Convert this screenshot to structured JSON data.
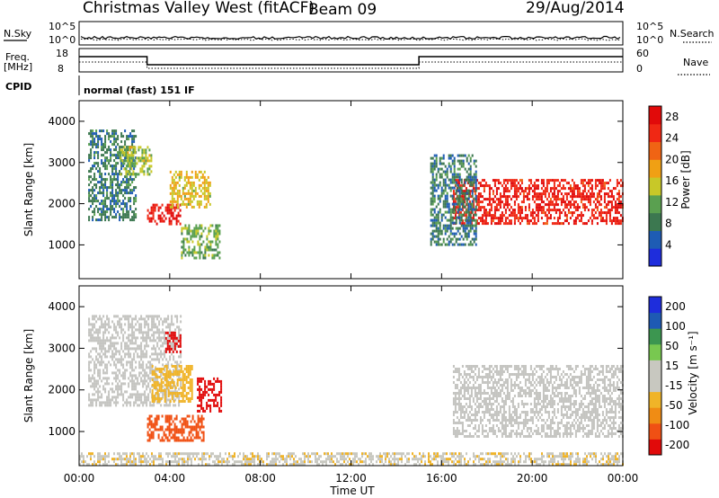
{
  "header": {
    "title": "Christmas Valley West (fitACF)",
    "beam": "Beam 09",
    "date": "29/Aug/2014"
  },
  "top_panels": {
    "nsky_label": "N.Sky",
    "nsky_ticks": [
      "10^5",
      "10^0"
    ],
    "nsearch_label": "N.Search",
    "nsearch_ticks": [
      "10^5",
      "10^0"
    ],
    "freq_label": "Freq.",
    "freq_unit": "[MHz]",
    "freq_ticks": [
      "18",
      "8"
    ],
    "nave_label": "Nave",
    "nave_ticks": [
      "60",
      "0"
    ],
    "cpid_label": "CPID",
    "cpid_value": "normal (fast) 151 IF"
  },
  "colors": {
    "power_scale": [
      "#1e2ddc",
      "#1e5cb4",
      "#3c7850",
      "#5aa050",
      "#c8c828",
      "#f0a014",
      "#f06414",
      "#f02814",
      "#e10a0a"
    ],
    "velocity_scale": [
      "#e10a0a",
      "#f05014",
      "#f08c14",
      "#f0b428",
      "#c8c8c0",
      "#c8c8c0",
      "#78c850",
      "#3c9650",
      "#1e5ab4",
      "#1e2ddc"
    ],
    "ground_scatter": "#c4c4c0"
  },
  "chart_data": [
    {
      "type": "heatmap",
      "name": "power",
      "xlabel": "Time UT",
      "ylabel": "Slant Range [km]",
      "x_ticks": [
        "00:00",
        "04:00",
        "08:00",
        "12:00",
        "16:00",
        "20:00",
        "00:00"
      ],
      "xlim_hours": [
        0,
        24
      ],
      "ylim_km": [
        180,
        4500
      ],
      "y_ticks": [
        1000,
        2000,
        3000,
        4000
      ],
      "colorbar": {
        "label": "Power [dB]",
        "ticks": [
          "4",
          "8",
          "12",
          "16",
          "20",
          "24",
          "28"
        ],
        "range": [
          0,
          30
        ]
      },
      "regions": [
        {
          "t_start": 0.4,
          "t_end": 2.5,
          "range_start": 1600,
          "range_end": 3800,
          "value": 8
        },
        {
          "t_start": 1.8,
          "t_end": 3.2,
          "range_start": 2700,
          "range_end": 3400,
          "value": 14
        },
        {
          "t_start": 3.0,
          "t_end": 4.5,
          "range_start": 1500,
          "range_end": 2000,
          "value": 27
        },
        {
          "t_start": 4.0,
          "t_end": 5.8,
          "range_start": 1900,
          "range_end": 2800,
          "value": 16
        },
        {
          "t_start": 4.5,
          "t_end": 6.2,
          "range_start": 700,
          "range_end": 1500,
          "value": 12
        },
        {
          "t_start": 16.5,
          "t_end": 24.0,
          "range_start": 1500,
          "range_end": 2600,
          "value": 26
        },
        {
          "t_start": 15.5,
          "t_end": 17.5,
          "range_start": 1000,
          "range_end": 3200,
          "value": 8
        }
      ]
    },
    {
      "type": "heatmap",
      "name": "velocity",
      "xlabel": "Time UT",
      "ylabel": "Slant Range [km]",
      "x_ticks": [
        "00:00",
        "04:00",
        "08:00",
        "12:00",
        "16:00",
        "20:00",
        "00:00"
      ],
      "xlim_hours": [
        0,
        24
      ],
      "ylim_km": [
        180,
        4500
      ],
      "y_ticks": [
        1000,
        2000,
        3000,
        4000
      ],
      "colorbar": {
        "label": "Velocity [m s⁻¹]",
        "ticks": [
          "200",
          "100",
          "50",
          "15",
          "-15",
          "-50",
          "-100",
          "-200"
        ],
        "range": [
          -250,
          250
        ]
      },
      "regions": [
        {
          "t_start": 0.4,
          "t_end": 4.5,
          "range_start": 1600,
          "range_end": 3800,
          "value": 0,
          "ground_scatter": true
        },
        {
          "t_start": 3.2,
          "t_end": 5.0,
          "range_start": 1700,
          "range_end": 2600,
          "value": -80
        },
        {
          "t_start": 3.8,
          "t_end": 4.5,
          "range_start": 2900,
          "range_end": 3400,
          "value": -230
        },
        {
          "t_start": 5.2,
          "t_end": 6.3,
          "range_start": 1500,
          "range_end": 2300,
          "value": -230
        },
        {
          "t_start": 3.0,
          "t_end": 5.5,
          "range_start": 800,
          "range_end": 1400,
          "value": -180
        },
        {
          "t_start": 16.5,
          "t_end": 24.0,
          "range_start": 900,
          "range_end": 2600,
          "value": 0,
          "ground_scatter": true
        },
        {
          "t_start": 0.0,
          "t_end": 24.0,
          "range_start": 180,
          "range_end": 500,
          "value": -40
        }
      ]
    }
  ]
}
